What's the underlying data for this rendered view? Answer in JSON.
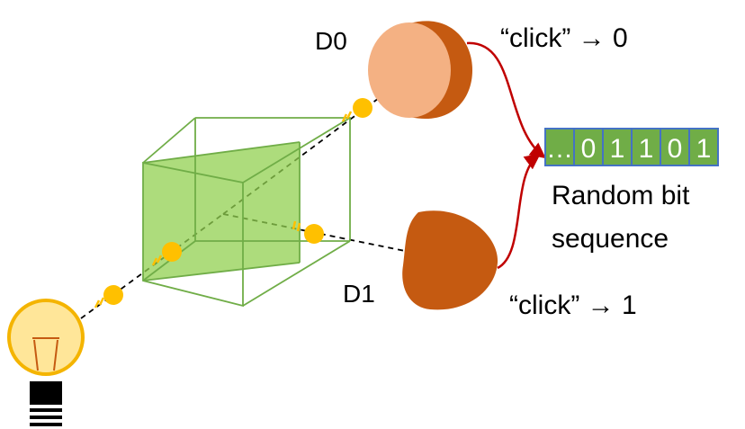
{
  "labels": {
    "detector0": "D0",
    "detector1": "D1",
    "click0": "“click” → 0",
    "click1": "“click” → 1",
    "caption_line1": "Random bit",
    "caption_line2": "sequence"
  },
  "bit_sequence": [
    "…",
    "0",
    "1",
    "1",
    "0",
    "1"
  ],
  "colors": {
    "prism_fill": "#92d050",
    "prism_edge": "#70ad47",
    "photon": "#ffc000",
    "detector_body": "#c55a11",
    "detector0_face": "#f4b183",
    "arrow": "#c00000",
    "bit_cell": "#70ad47",
    "bit_border": "#4472c4",
    "bulb_glass": "#ffe699",
    "bulb_outline": "#f4b400"
  },
  "icons": {
    "source": "light-bulb-icon"
  }
}
